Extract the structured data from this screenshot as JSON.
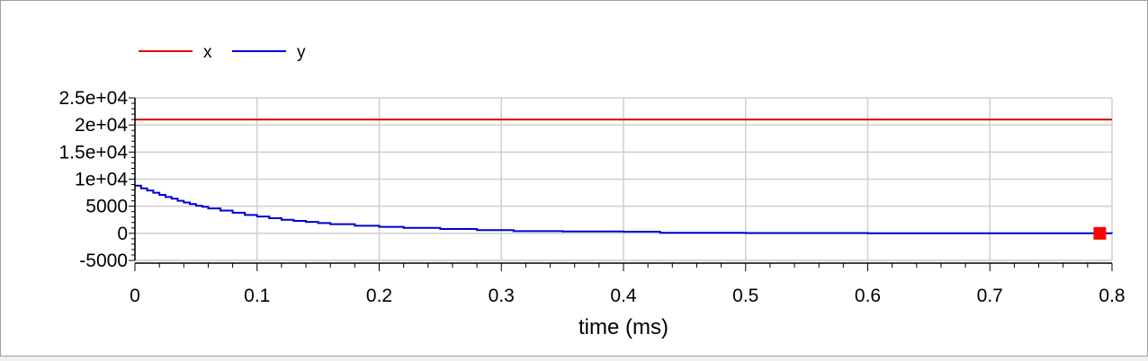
{
  "chart_data": {
    "type": "line",
    "xlabel": "time (ms)",
    "ylabel": "",
    "xlim": [
      0,
      0.8
    ],
    "ylim": [
      -5000,
      25000
    ],
    "x_ticks": [
      0,
      0.1,
      0.2,
      0.3,
      0.4,
      0.5,
      0.6,
      0.7,
      0.8
    ],
    "x_tick_labels": [
      "0",
      "0.1",
      "0.2",
      "0.3",
      "0.4",
      "0.5",
      "0.6",
      "0.7",
      "0.8"
    ],
    "y_ticks": [
      -5000,
      0,
      5000,
      10000,
      15000,
      20000,
      25000
    ],
    "y_tick_labels": [
      "-5000",
      "0",
      "5000",
      "1e+04",
      "1.5e+04",
      "2e+04",
      "2.5e+04"
    ],
    "grid": true,
    "legend_position": "top-left",
    "series": [
      {
        "name": "x",
        "color": "#e00000",
        "x": [
          0,
          0.8
        ],
        "y": [
          21000,
          21000
        ]
      },
      {
        "name": "y",
        "color": "#0000d0",
        "step": true,
        "x": [
          0,
          0.005,
          0.01,
          0.015,
          0.02,
          0.025,
          0.03,
          0.035,
          0.04,
          0.045,
          0.05,
          0.055,
          0.06,
          0.07,
          0.08,
          0.09,
          0.1,
          0.11,
          0.12,
          0.13,
          0.14,
          0.15,
          0.16,
          0.18,
          0.2,
          0.22,
          0.25,
          0.28,
          0.31,
          0.35,
          0.4,
          0.43,
          0.5,
          0.6,
          0.7,
          0.8
        ],
        "y": [
          8800,
          8300,
          7900,
          7500,
          7100,
          6700,
          6400,
          6000,
          5700,
          5400,
          5100,
          4900,
          4600,
          4200,
          3800,
          3400,
          3100,
          2800,
          2500,
          2300,
          2100,
          1900,
          1700,
          1400,
          1200,
          1000,
          800,
          600,
          400,
          350,
          300,
          100,
          50,
          20,
          10,
          5
        ]
      }
    ],
    "marker": {
      "x": 0.79,
      "y": 0,
      "color": "#ff0000"
    }
  }
}
